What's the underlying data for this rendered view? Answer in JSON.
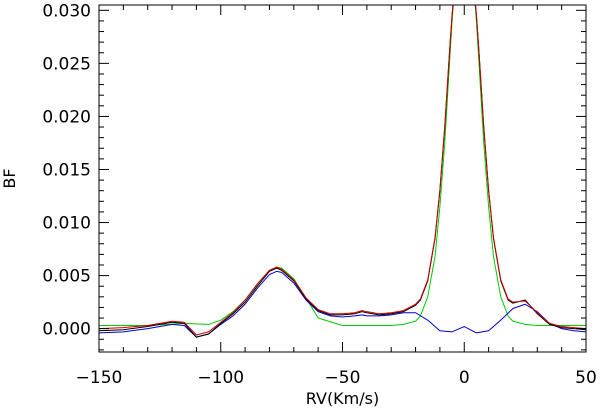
{
  "chart_data": {
    "type": "line",
    "title": "",
    "xlabel": "RV(Km/s)",
    "ylabel": "BF",
    "xlim": [
      -150,
      50
    ],
    "ylim": [
      -0.0022,
      0.0305
    ],
    "x_ticks": [
      -150,
      -100,
      -50,
      0,
      50
    ],
    "x_tick_labels": [
      "−150",
      "−100",
      "−50",
      "0",
      "50"
    ],
    "y_ticks": [
      0.0,
      0.005,
      0.01,
      0.015,
      0.02,
      0.025,
      0.03
    ],
    "y_tick_labels": [
      "0.000",
      "0.005",
      "0.010",
      "0.015",
      "0.020",
      "0.025",
      "0.030"
    ],
    "grid": false,
    "legend": "none",
    "series": [
      {
        "color": "#000000",
        "x": [
          -150,
          -140,
          -130,
          -120,
          -115,
          -110,
          -105,
          -100,
          -95,
          -90,
          -85,
          -80,
          -77,
          -75,
          -70,
          -65,
          -60,
          -55,
          -50,
          -45,
          -42,
          -40,
          -35,
          -30,
          -25,
          -20,
          -18,
          -15,
          -12,
          -10,
          -8,
          -6,
          -5,
          -4,
          4,
          5,
          6,
          8,
          10,
          12,
          15,
          18,
          20,
          25,
          30,
          35,
          40,
          45,
          50
        ],
        "y": [
          -0.0002,
          -0.0001,
          0.0002,
          0.0006,
          0.0005,
          -0.0008,
          -0.0005,
          0.0005,
          0.0014,
          0.0025,
          0.004,
          0.0054,
          0.0057,
          0.0055,
          0.0045,
          0.0028,
          0.0017,
          0.0013,
          0.0013,
          0.0014,
          0.0016,
          0.0015,
          0.0013,
          0.0014,
          0.0016,
          0.0022,
          0.0027,
          0.0045,
          0.0085,
          0.013,
          0.019,
          0.0262,
          0.0295,
          0.032,
          0.032,
          0.0295,
          0.0262,
          0.019,
          0.013,
          0.0085,
          0.0045,
          0.0027,
          0.0024,
          0.0027,
          0.0014,
          0.0004,
          0.0001,
          0.0,
          -0.0001
        ]
      },
      {
        "color": "#cc0000",
        "x": [
          -150,
          -140,
          -130,
          -120,
          -115,
          -110,
          -105,
          -100,
          -95,
          -90,
          -85,
          -80,
          -77,
          -75,
          -70,
          -65,
          -60,
          -55,
          -50,
          -45,
          -42,
          -40,
          -35,
          -30,
          -25,
          -20,
          -18,
          -15,
          -12,
          -10,
          -8,
          -6,
          -5,
          -4,
          4,
          5,
          6,
          8,
          10,
          12,
          15,
          18,
          20,
          25,
          30,
          35,
          40,
          45,
          50
        ],
        "y": [
          0.0,
          0.0001,
          0.0003,
          0.0007,
          0.0006,
          -0.0006,
          -0.0003,
          0.0006,
          0.0015,
          0.0027,
          0.0042,
          0.0055,
          0.0058,
          0.0056,
          0.0046,
          0.0029,
          0.0018,
          0.0014,
          0.0014,
          0.0015,
          0.0017,
          0.0016,
          0.0014,
          0.0015,
          0.0017,
          0.0023,
          0.0028,
          0.0046,
          0.0086,
          0.0131,
          0.0191,
          0.0263,
          0.0296,
          0.0321,
          0.0321,
          0.0296,
          0.0263,
          0.0191,
          0.0131,
          0.0086,
          0.0046,
          0.0028,
          0.0025,
          0.0026,
          0.0015,
          0.0005,
          0.0002,
          0.0001,
          0.0
        ]
      },
      {
        "color": "#00cc00",
        "x": [
          -150,
          -130,
          -115,
          -105,
          -100,
          -95,
          -90,
          -85,
          -80,
          -77,
          -75,
          -70,
          -65,
          -60,
          -50,
          -40,
          -30,
          -25,
          -20,
          -18,
          -15,
          -12,
          -10,
          -8,
          -6,
          -5,
          -4,
          4,
          5,
          6,
          8,
          10,
          12,
          15,
          18,
          20,
          25,
          30,
          40,
          50
        ],
        "y": [
          0.0003,
          0.0003,
          0.0005,
          0.0004,
          0.0008,
          0.0016,
          0.0027,
          0.0042,
          0.0055,
          0.0058,
          0.0057,
          0.0047,
          0.0029,
          0.001,
          0.0003,
          0.0003,
          0.0003,
          0.0004,
          0.0007,
          0.0012,
          0.003,
          0.0068,
          0.0115,
          0.0175,
          0.0252,
          0.029,
          0.032,
          0.032,
          0.029,
          0.0252,
          0.0175,
          0.0115,
          0.0068,
          0.003,
          0.0012,
          0.0007,
          0.0004,
          0.0003,
          0.0003,
          0.0003
        ]
      },
      {
        "color": "#0000cc",
        "x": [
          -150,
          -140,
          -130,
          -120,
          -115,
          -110,
          -105,
          -100,
          -95,
          -90,
          -85,
          -80,
          -77,
          -75,
          -70,
          -65,
          -60,
          -55,
          -50,
          -45,
          -42,
          -40,
          -35,
          -30,
          -25,
          -20,
          -15,
          -10,
          -5,
          0,
          5,
          10,
          15,
          20,
          25,
          30,
          35,
          40,
          45,
          50
        ],
        "y": [
          -0.0004,
          -0.0003,
          0.0,
          0.0004,
          0.0003,
          -0.0008,
          -0.0005,
          0.0004,
          0.0012,
          0.0023,
          0.0038,
          0.0051,
          0.0054,
          0.0053,
          0.0043,
          0.0027,
          0.0016,
          0.0012,
          0.0011,
          0.0012,
          0.0013,
          0.0012,
          0.0012,
          0.0013,
          0.0015,
          0.0015,
          0.0008,
          -0.0002,
          -0.0003,
          0.0002,
          -0.0004,
          -0.0002,
          0.0008,
          0.0019,
          0.0023,
          0.0016,
          0.0005,
          0.0,
          -0.0002,
          -0.0003
        ]
      }
    ]
  }
}
